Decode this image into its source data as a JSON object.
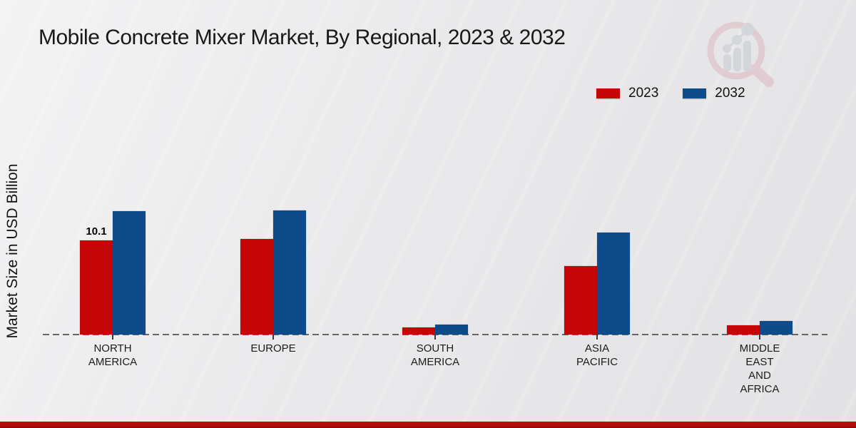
{
  "header": {
    "title": "Mobile Concrete Mixer Market, By Regional, 2023 & 2032"
  },
  "watermark": {
    "icon": "magnifier-bar-chart-logo",
    "lens_color": "#ddbcc2",
    "bars_color": "#c7cbd3"
  },
  "legend": {
    "items": [
      {
        "label": "2023",
        "color": "#c60606"
      },
      {
        "label": "2032",
        "color": "#0e4b8a"
      }
    ]
  },
  "footer": {
    "bar_color": "#b10b0b"
  },
  "chart_data": {
    "type": "bar",
    "title": "Mobile Concrete Mixer Market, By Regional, 2023 & 2032",
    "ylabel": "Market Size in USD Billion",
    "xlabel": "",
    "ylim": [
      0,
      14
    ],
    "grid": false,
    "legend_position": "top-right",
    "baseline_style": "dashed",
    "categories": [
      "NORTH AMERICA",
      "EUROPE",
      "SOUTH AMERICA",
      "ASIA PACIFIC",
      "MIDDLE EAST AND AFRICA"
    ],
    "category_label_lines": [
      [
        "NORTH",
        "AMERICA"
      ],
      [
        "EUROPE"
      ],
      [
        "SOUTH",
        "AMERICA"
      ],
      [
        "ASIA",
        "PACIFIC"
      ],
      [
        "MIDDLE",
        "EAST",
        "AND",
        "AFRICA"
      ]
    ],
    "series": [
      {
        "name": "2023",
        "color": "#c60606",
        "values": [
          10.1,
          10.2,
          0.8,
          7.3,
          1.0
        ]
      },
      {
        "name": "2032",
        "color": "#0e4b8a",
        "values": [
          13.2,
          13.3,
          1.05,
          10.9,
          1.45
        ]
      }
    ],
    "data_labels": [
      {
        "series": "2023",
        "category": "NORTH AMERICA",
        "text": "10.1"
      }
    ]
  }
}
